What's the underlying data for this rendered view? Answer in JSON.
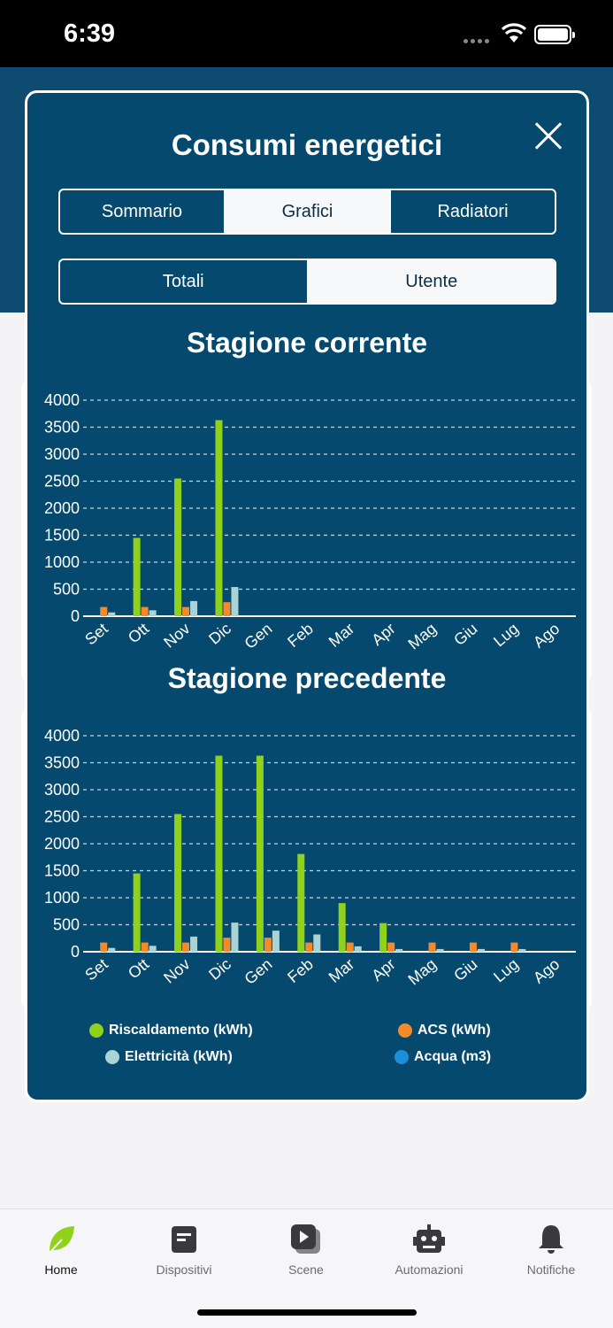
{
  "status": {
    "time": "6:39"
  },
  "modal": {
    "title": "Consumi energetici",
    "tabs": [
      {
        "label": "Sommario",
        "active": false
      },
      {
        "label": "Grafici",
        "active": true
      },
      {
        "label": "Radiatori",
        "active": false
      }
    ],
    "subtabs": [
      {
        "label": "Totali",
        "active": false
      },
      {
        "label": "Utente",
        "active": true
      }
    ]
  },
  "colors": {
    "riscaldamento": "#8fd11b",
    "acs": "#f58a2b",
    "elettricita": "#a9d3d4",
    "acqua": "#1b8fd8",
    "modal_bg": "#054a6e"
  },
  "chart_data": [
    {
      "type": "bar",
      "title": "Stagione corrente",
      "categories": [
        "Set",
        "Ott",
        "Nov",
        "Dic",
        "Gen",
        "Feb",
        "Mar",
        "Apr",
        "Mag",
        "Giu",
        "Lug",
        "Ago"
      ],
      "ylim": [
        0,
        4000
      ],
      "yticks": [
        0,
        500,
        1000,
        1500,
        2000,
        2500,
        3000,
        3500,
        4000
      ],
      "grid": true,
      "series": [
        {
          "name": "Riscaldamento (kWh)",
          "color": "#8fd11b",
          "values": [
            0,
            1450,
            2550,
            3630,
            0,
            0,
            0,
            0,
            0,
            0,
            0,
            0
          ]
        },
        {
          "name": "ACS (kWh)",
          "color": "#f58a2b",
          "values": [
            170,
            170,
            170,
            260,
            0,
            0,
            0,
            0,
            0,
            0,
            0,
            0
          ]
        },
        {
          "name": "Elettricità (kWh)",
          "color": "#a9d3d4",
          "values": [
            70,
            110,
            280,
            540,
            0,
            0,
            0,
            0,
            0,
            0,
            0,
            0
          ]
        }
      ]
    },
    {
      "type": "bar",
      "title": "Stagione precedente",
      "categories": [
        "Set",
        "Ott",
        "Nov",
        "Dic",
        "Gen",
        "Feb",
        "Mar",
        "Apr",
        "Mag",
        "Giu",
        "Lug",
        "Ago"
      ],
      "ylim": [
        0,
        4000
      ],
      "yticks": [
        0,
        500,
        1000,
        1500,
        2000,
        2500,
        3000,
        3500,
        4000
      ],
      "grid": true,
      "series": [
        {
          "name": "Riscaldamento (kWh)",
          "color": "#8fd11b",
          "values": [
            0,
            1450,
            2550,
            3630,
            3630,
            1810,
            900,
            530,
            0,
            0,
            0,
            0
          ]
        },
        {
          "name": "ACS (kWh)",
          "color": "#f58a2b",
          "values": [
            170,
            170,
            170,
            260,
            260,
            170,
            170,
            170,
            170,
            170,
            170,
            0
          ]
        },
        {
          "name": "Elettricità (kWh)",
          "color": "#a9d3d4",
          "values": [
            70,
            110,
            280,
            540,
            390,
            320,
            100,
            50,
            50,
            50,
            50,
            0
          ]
        }
      ]
    }
  ],
  "legend": [
    {
      "label": "Riscaldamento (kWh)",
      "color": "#8fd11b"
    },
    {
      "label": "ACS (kWh)",
      "color": "#f58a2b"
    },
    {
      "label": "Elettricità (kWh)",
      "color": "#a9d3d4"
    },
    {
      "label": "Acqua (m3)",
      "color": "#1b8fd8"
    }
  ],
  "tabbar": [
    {
      "label": "Home",
      "icon": "leaf-icon",
      "active": true
    },
    {
      "label": "Dispositivi",
      "icon": "device-icon",
      "active": false
    },
    {
      "label": "Scene",
      "icon": "scene-icon",
      "active": false
    },
    {
      "label": "Automazioni",
      "icon": "robot-icon",
      "active": false
    },
    {
      "label": "Notifiche",
      "icon": "bell-icon",
      "active": false
    }
  ]
}
